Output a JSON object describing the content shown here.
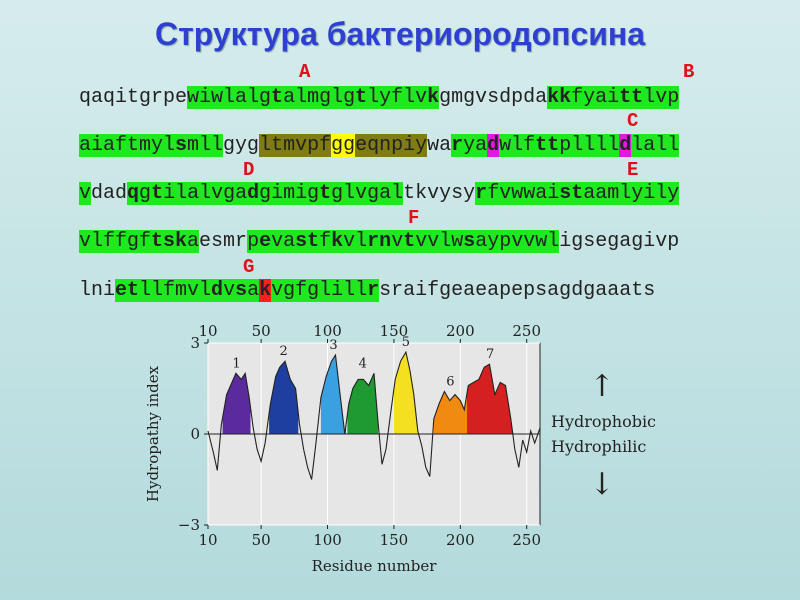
{
  "title": "Структура бактериородопсина",
  "helix_labels": [
    "A",
    "B",
    "C",
    "D",
    "E",
    "F",
    "G"
  ],
  "sequence_lines": [
    [
      [
        "qaqitgrpe",
        "s",
        ""
      ],
      [
        "wiwlalg",
        "s",
        "g"
      ],
      [
        "t",
        "b",
        "g"
      ],
      [
        "almglg",
        "s",
        "g"
      ],
      [
        "t",
        "b",
        "g"
      ],
      [
        "lyflv",
        "s",
        "g"
      ],
      [
        "k",
        "b",
        "g"
      ],
      [
        "gmgvsdpda",
        "s",
        ""
      ],
      [
        "kk",
        "b",
        "g"
      ],
      [
        "fyai",
        "s",
        "g"
      ],
      [
        "tt",
        "b",
        "g"
      ],
      [
        "lvp",
        "s",
        "g"
      ]
    ],
    [
      [
        "aiaftmyl",
        "s",
        "g"
      ],
      [
        "s",
        "b",
        "g"
      ],
      [
        "mll",
        "s",
        "g"
      ],
      [
        "gyg",
        "s",
        ""
      ],
      [
        "ltmvpf",
        "s",
        "o"
      ],
      [
        "gg",
        "s",
        "y"
      ],
      [
        "eqnpiy",
        "s",
        "o"
      ],
      [
        "wa",
        "s",
        ""
      ],
      [
        "r",
        "b",
        "g"
      ],
      [
        "ya",
        "s",
        "g"
      ],
      [
        "d",
        "b",
        "m"
      ],
      [
        "wlf",
        "s",
        "g"
      ],
      [
        "tt",
        "b",
        "g"
      ],
      [
        "pllll",
        "s",
        "g"
      ],
      [
        "d",
        "b",
        "m"
      ],
      [
        "lall",
        "s",
        "g"
      ]
    ],
    [
      [
        "v",
        "s",
        "g"
      ],
      [
        "dad",
        "s",
        ""
      ],
      [
        "q",
        "b",
        "g"
      ],
      [
        "g",
        "s",
        "g"
      ],
      [
        "t",
        "b",
        "g"
      ],
      [
        "ilalvga",
        "s",
        "g"
      ],
      [
        "d",
        "b",
        "g"
      ],
      [
        "gimig",
        "s",
        "g"
      ],
      [
        "t",
        "b",
        "g"
      ],
      [
        "glvgal",
        "s",
        "g"
      ],
      [
        "tkvysy",
        "s",
        ""
      ],
      [
        "r",
        "b",
        "g"
      ],
      [
        "fvwwai",
        "s",
        "g"
      ],
      [
        "st",
        "b",
        "g"
      ],
      [
        "aamlyily",
        "s",
        "g"
      ]
    ],
    [
      [
        "vlffgf",
        "s",
        "g"
      ],
      [
        "tsk",
        "b",
        "g"
      ],
      [
        "a",
        "s",
        "g"
      ],
      [
        "esmr",
        "s",
        ""
      ],
      [
        "p",
        "s",
        "g"
      ],
      [
        "e",
        "b",
        "g"
      ],
      [
        "va",
        "s",
        "g"
      ],
      [
        "st",
        "b",
        "g"
      ],
      [
        "f",
        "s",
        "g"
      ],
      [
        "k",
        "b",
        "g"
      ],
      [
        "vl",
        "s",
        "g"
      ],
      [
        "rn",
        "b",
        "g"
      ],
      [
        "v",
        "s",
        "g"
      ],
      [
        "t",
        "b",
        "g"
      ],
      [
        "vvlw",
        "s",
        "g"
      ],
      [
        "s",
        "b",
        "g"
      ],
      [
        "aypvvwl",
        "s",
        "g"
      ],
      [
        "i",
        "s",
        ""
      ],
      [
        "gsegagivp",
        "s",
        ""
      ]
    ],
    [
      [
        "lni",
        "s",
        ""
      ],
      [
        "et",
        "b",
        "g"
      ],
      [
        "llfmvl",
        "s",
        "g"
      ],
      [
        "d",
        "b",
        "g"
      ],
      [
        "v",
        "s",
        "g"
      ],
      [
        "s",
        "b",
        "g"
      ],
      [
        "a",
        "s",
        "g"
      ],
      [
        "k",
        "b",
        "r"
      ],
      [
        "vgfglill",
        "s",
        "g"
      ],
      [
        "r",
        "b",
        "g"
      ],
      [
        "sraifgeaeapepsagdgaaats",
        "s",
        ""
      ]
    ]
  ],
  "chart_data": {
    "type": "area",
    "xlabel": "Residue number",
    "ylabel": "Hydropathy index",
    "x_ticks": [
      10,
      50,
      100,
      150,
      200,
      250
    ],
    "y_ticks": [
      3,
      0,
      -3
    ],
    "y_tick_labels": [
      "3",
      "0",
      "−3"
    ],
    "xlim": [
      10,
      260
    ],
    "ylim": [
      -3,
      3
    ],
    "grid": true,
    "helix_labels": [
      "1",
      "2",
      "3",
      "4",
      "5",
      "6",
      "7"
    ],
    "helices": [
      {
        "name": "1",
        "range": [
          21,
          42
        ],
        "color": "#5b2a9c"
      },
      {
        "name": "2",
        "range": [
          56,
          78
        ],
        "color": "#1f3fa0"
      },
      {
        "name": "3",
        "range": [
          95,
          114
        ],
        "color": "#3aa0e0"
      },
      {
        "name": "4",
        "range": [
          115,
          138
        ],
        "color": "#1e9a30"
      },
      {
        "name": "5",
        "range": [
          150,
          168
        ],
        "color": "#f4e020"
      },
      {
        "name": "6",
        "range": [
          180,
          205
        ],
        "color": "#f08a10"
      },
      {
        "name": "7",
        "range": [
          205,
          240
        ],
        "color": "#d42020"
      }
    ],
    "profile": [
      [
        10,
        0.1
      ],
      [
        14,
        -0.6
      ],
      [
        17,
        -1.2
      ],
      [
        20,
        0.3
      ],
      [
        24,
        1.3
      ],
      [
        27,
        1.6
      ],
      [
        31,
        2.0
      ],
      [
        35,
        1.8
      ],
      [
        38,
        2.0
      ],
      [
        41,
        1.2
      ],
      [
        44,
        0.2
      ],
      [
        47,
        -0.5
      ],
      [
        50,
        -0.9
      ],
      [
        53,
        -0.3
      ],
      [
        57,
        1.0
      ],
      [
        61,
        1.9
      ],
      [
        64,
        2.2
      ],
      [
        68,
        2.4
      ],
      [
        72,
        1.8
      ],
      [
        76,
        1.5
      ],
      [
        79,
        0.3
      ],
      [
        82,
        -0.5
      ],
      [
        85,
        -1.1
      ],
      [
        88,
        -1.5
      ],
      [
        91,
        -0.4
      ],
      [
        95,
        1.2
      ],
      [
        99,
        1.9
      ],
      [
        103,
        2.4
      ],
      [
        106,
        2.6
      ],
      [
        110,
        1.1
      ],
      [
        113,
        0.0
      ],
      [
        116,
        1.0
      ],
      [
        119,
        1.5
      ],
      [
        123,
        1.8
      ],
      [
        127,
        1.8
      ],
      [
        131,
        1.6
      ],
      [
        135,
        2.0
      ],
      [
        138,
        0.4
      ],
      [
        141,
        -1.0
      ],
      [
        144,
        -0.5
      ],
      [
        147,
        0.5
      ],
      [
        151,
        1.8
      ],
      [
        155,
        2.4
      ],
      [
        159,
        2.7
      ],
      [
        162,
        2.1
      ],
      [
        165,
        1.3
      ],
      [
        168,
        0.1
      ],
      [
        171,
        -0.4
      ],
      [
        174,
        -1.1
      ],
      [
        177,
        -1.4
      ],
      [
        180,
        0.5
      ],
      [
        184,
        1.0
      ],
      [
        188,
        1.4
      ],
      [
        192,
        1.1
      ],
      [
        196,
        1.3
      ],
      [
        200,
        1.1
      ],
      [
        203,
        0.8
      ],
      [
        206,
        1.6
      ],
      [
        210,
        1.7
      ],
      [
        214,
        1.8
      ],
      [
        218,
        2.2
      ],
      [
        222,
        2.3
      ],
      [
        226,
        1.3
      ],
      [
        230,
        1.7
      ],
      [
        234,
        1.6
      ],
      [
        238,
        0.5
      ],
      [
        241,
        -0.5
      ],
      [
        244,
        -1.1
      ],
      [
        247,
        -0.2
      ],
      [
        250,
        -0.6
      ],
      [
        253,
        0.1
      ],
      [
        256,
        -0.3
      ],
      [
        260,
        0.2
      ]
    ],
    "hydrophobic_label": "Hydrophobic",
    "hydrophilic_label": "Hydrophilic",
    "up_arrow": "↑",
    "down_arrow": "↓"
  }
}
